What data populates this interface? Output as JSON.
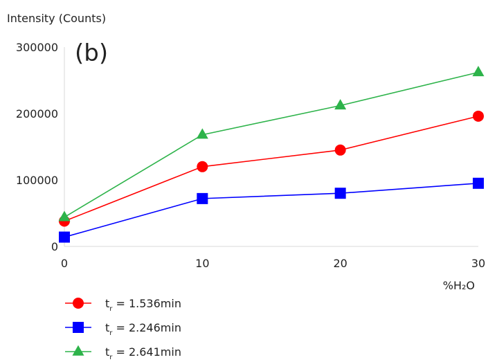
{
  "chart_data": {
    "type": "line",
    "panel_label": "(b)",
    "ylabel": "Intensity (Counts)",
    "xlabel": "%H₂O",
    "x": [
      0,
      10,
      20,
      30
    ],
    "xticks": [
      "0",
      "10",
      "20",
      "30"
    ],
    "yticks": [
      "0",
      "100000",
      "200000",
      "300000"
    ],
    "xlim": [
      0,
      30
    ],
    "ylim": [
      0,
      300000
    ],
    "grid": false,
    "legend_position": "bottom-left",
    "series": [
      {
        "name": "t_r = 1.536min",
        "legend_main": "t",
        "legend_sub": "r",
        "legend_rest": " = 1.536min",
        "color": "#ff0000",
        "marker": "circle",
        "values": [
          38000,
          120000,
          145000,
          196000
        ]
      },
      {
        "name": "t_r = 2.246min",
        "legend_main": "t",
        "legend_sub": "r",
        "legend_rest": " = 2.246min",
        "color": "#0000ff",
        "marker": "square",
        "values": [
          14000,
          72000,
          80000,
          95000
        ]
      },
      {
        "name": "t_r = 2.641min",
        "legend_main": "t",
        "legend_sub": "r",
        "legend_rest": " = 2.641min",
        "color": "#2db34a",
        "marker": "triangle",
        "values": [
          44000,
          168000,
          212000,
          262000
        ]
      }
    ]
  }
}
